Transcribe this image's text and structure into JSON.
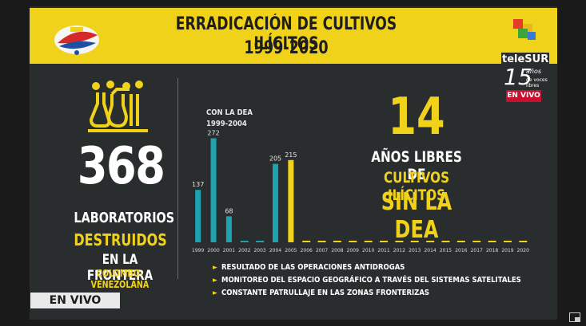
{
  "header": {
    "title_line1": "ERRADICACIÓN DE CULTIVOS ILÍCITOS",
    "title_line2": "1999-2020"
  },
  "channel": {
    "name": "teleSUR",
    "anniversary": "15 años",
    "tagline": "de voces libres",
    "live_badge": "EN VIVO"
  },
  "labs": {
    "count": "368",
    "line1": "LABORATORIOS",
    "line2": "DESTRUIDOS",
    "line3": "EN LA FRONTERA",
    "line4": "COLOMBO-VENEZOLANA"
  },
  "chart_data": {
    "type": "bar",
    "annotation_line1": "CON LA DEA",
    "annotation_line2": "1999-2004",
    "categories": [
      "1999",
      "2000",
      "2001",
      "2002",
      "2003",
      "2004",
      "2005",
      "2006",
      "2007",
      "2008",
      "2009",
      "2010",
      "2011",
      "2012",
      "2013",
      "2014",
      "2015",
      "2016",
      "2017",
      "2018",
      "2019",
      "2020"
    ],
    "values": [
      137,
      272,
      68,
      0,
      0,
      205,
      215,
      0,
      0,
      0,
      0,
      0,
      0,
      0,
      0,
      0,
      0,
      0,
      0,
      0,
      0,
      0
    ],
    "labels": [
      "137",
      "272",
      "68",
      "",
      "",
      "205",
      "215",
      "",
      "",
      "",
      "",
      "",
      "",
      "",
      "",
      "",
      "",
      "",
      "",
      "",
      "",
      ""
    ],
    "ylim": [
      0,
      300
    ],
    "colors": {
      "dea": "#1fa2b0",
      "highlight": "#f0d21a",
      "baseline": "#f0d21a"
    }
  },
  "highlight": {
    "number": "14",
    "line1": "AÑOS LIBRES DE",
    "line2": "CULTIVOS ILÍCITOS",
    "line3": "SIN LA DEA"
  },
  "bullets": [
    "RESULTADO DE LAS OPERACIONES  ANTIDROGAS",
    "MONITOREO DEL ESPACIO GEOGRÁFICO A TRAVÉS DEL SISTEMAS SATELITALES",
    "CONSTANTE PATRULLAJE EN LAS ZONAS FRONTERIZAS"
  ],
  "live_label": "EN VIVO",
  "colors": {
    "accent": "#f0d21a",
    "background": "#2a2d2e",
    "teal": "#1fa2b0",
    "live_red": "#c8102e"
  },
  "icons": [
    "fanb-logo",
    "lab-flask-icon",
    "telesur-logo",
    "layout-corner-icon"
  ]
}
